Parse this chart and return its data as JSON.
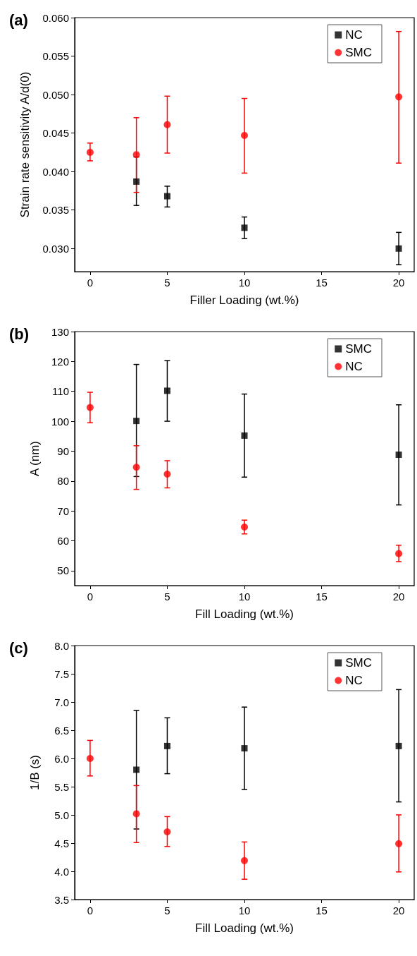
{
  "chart_data": [
    {
      "type": "scatter",
      "title": "(a)",
      "xlabel": "Filler Loading (wt.%)",
      "ylabel": "Strain rate sensitivity A/d(0)",
      "xlim": [
        -1,
        21
      ],
      "xticks": [
        0,
        5,
        10,
        15,
        20
      ],
      "ylim": [
        0.027,
        0.06
      ],
      "yticks": [
        {
          "value": 0.03,
          "label": "0.030"
        },
        {
          "value": 0.035,
          "label": "0.035"
        },
        {
          "value": 0.04,
          "label": "0.040"
        },
        {
          "value": 0.045,
          "label": "0.045"
        },
        {
          "value": 0.05,
          "label": "0.050"
        },
        {
          "value": 0.055,
          "label": "0.055"
        },
        {
          "value": 0.06,
          "label": "0.060"
        }
      ],
      "grid": false,
      "legend": "top right",
      "x": [
        0,
        3,
        5,
        10,
        20
      ],
      "series": [
        {
          "name": "NC",
          "color": "#000000",
          "marker": "square",
          "values": [
            null,
            0.0387,
            0.0368,
            0.0327,
            0.03
          ],
          "errors": [
            null,
            [
              0.0356,
              0.0419
            ],
            [
              0.0354,
              0.0381
            ],
            [
              0.0313,
              0.0341
            ],
            [
              0.0279,
              0.0321
            ]
          ]
        },
        {
          "name": "SMC",
          "color": "#ff0000",
          "marker": "circle",
          "values": [
            0.0425,
            0.0422,
            0.0461,
            0.0447,
            0.0497
          ],
          "errors": [
            [
              0.0414,
              0.0437
            ],
            [
              0.0373,
              0.047
            ],
            [
              0.0424,
              0.0498
            ],
            [
              0.0398,
              0.0495
            ],
            [
              0.0411,
              0.0582
            ]
          ]
        }
      ]
    },
    {
      "type": "scatter",
      "title": "(b)",
      "xlabel": "Fill Loading (wt.%)",
      "ylabel": "A (nm)",
      "xlim": [
        -1,
        21
      ],
      "xticks": [
        0,
        5,
        10,
        15,
        20
      ],
      "ylim": [
        45,
        130
      ],
      "yticks": [
        50,
        60,
        70,
        80,
        90,
        100,
        110,
        120,
        130
      ],
      "grid": false,
      "legend": "top right",
      "x": [
        0,
        3,
        5,
        10,
        20
      ],
      "series": [
        {
          "name": "SMC",
          "color": "#000000",
          "marker": "square",
          "values": [
            null,
            100.1,
            110.2,
            95.2,
            88.8
          ],
          "errors": [
            null,
            [
              81.5,
              119
            ],
            [
              100,
              120.3
            ],
            [
              81.3,
              109.1
            ],
            [
              72,
              105.5
            ]
          ]
        },
        {
          "name": "NC",
          "color": "#ff0000",
          "marker": "circle",
          "values": [
            104.6,
            84.6,
            82.3,
            64.6,
            55.7
          ],
          "errors": [
            [
              99.5,
              109.7
            ],
            [
              77.2,
              91.8
            ],
            [
              77.7,
              86.8
            ],
            [
              62.3,
              66.9
            ],
            [
              53,
              58.5
            ]
          ]
        }
      ]
    },
    {
      "type": "scatter",
      "title": "(c)",
      "xlabel": "Fill Loading (wt.%)",
      "ylabel": "1/B (s)",
      "xlim": [
        -1,
        21
      ],
      "xticks": [
        0,
        5,
        10,
        15,
        20
      ],
      "ylim": [
        3.5,
        8
      ],
      "yticks": [
        3.5,
        {
          "value": 4,
          "label": "4.0"
        },
        4.5,
        {
          "value": 5,
          "label": "5.0"
        },
        5.5,
        {
          "value": 6,
          "label": "6.0"
        },
        6.5,
        {
          "value": 7,
          "label": "7.0"
        },
        7.5,
        {
          "value": 8,
          "label": "8.0"
        }
      ],
      "grid": false,
      "legend": "top right",
      "x": [
        0,
        3,
        5,
        10,
        20
      ],
      "series": [
        {
          "name": "SMC",
          "color": "#000000",
          "marker": "square",
          "values": [
            null,
            5.8,
            6.22,
            6.18,
            6.22
          ],
          "errors": [
            null,
            [
              4.75,
              6.85
            ],
            [
              5.73,
              6.72
            ],
            [
              5.45,
              6.91
            ],
            [
              5.23,
              7.22
            ]
          ]
        },
        {
          "name": "NC",
          "color": "#ff0000",
          "marker": "circle",
          "values": [
            6.0,
            5.02,
            4.7,
            4.19,
            4.49
          ],
          "errors": [
            [
              5.69,
              6.32
            ],
            [
              4.51,
              5.52
            ],
            [
              4.44,
              4.97
            ],
            [
              3.86,
              4.52
            ],
            [
              3.99,
              5.0
            ]
          ]
        }
      ]
    }
  ]
}
